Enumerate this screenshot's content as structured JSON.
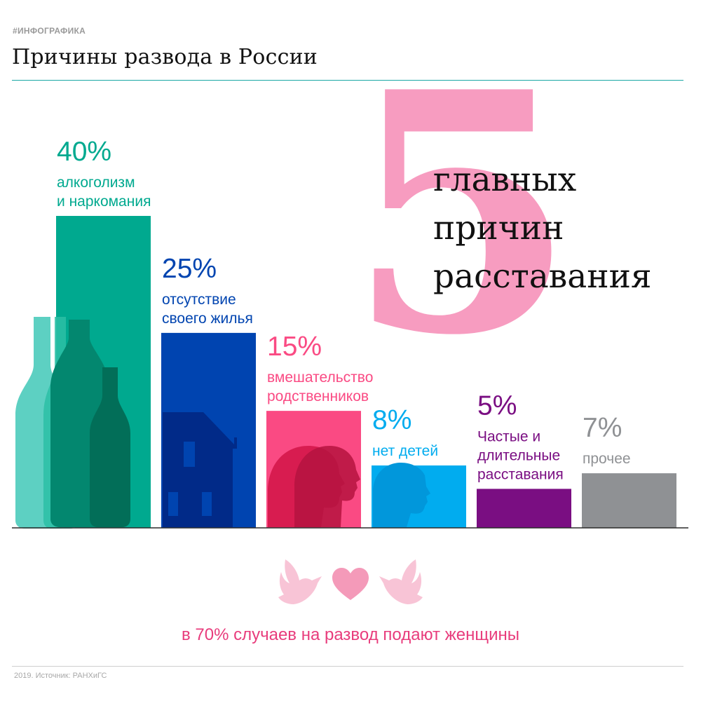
{
  "header": {
    "tag": "#ИНФОГРАФИКА",
    "title": "Причины развода в России"
  },
  "headline": {
    "number": "5",
    "lines": [
      "главных",
      "причин",
      "расставания"
    ]
  },
  "chart_data": {
    "type": "bar",
    "title": "Причины развода в России",
    "categories": [
      "алкоголизм и наркомания",
      "отсутствие своего жилья",
      "вмешательство родственников",
      "нет детей",
      "Частые и длительные расставания",
      "прочее"
    ],
    "values": [
      40,
      25,
      15,
      8,
      5,
      7
    ],
    "unit": "%",
    "ylim": [
      0,
      40
    ],
    "grid": false,
    "colors": [
      "#00a98f",
      "#0044b0",
      "#fa4a83",
      "#01acef",
      "#7a0e82",
      "#8f9194"
    ],
    "value_labels": [
      "40%",
      "25%",
      "15%",
      "8%",
      "5%",
      "7%"
    ],
    "label_lines": [
      [
        "алкоголизм",
        "и наркомания"
      ],
      [
        "отсутствие",
        "своего жилья"
      ],
      [
        "вмешательство",
        "родственников"
      ],
      [
        "нет детей"
      ],
      [
        "Частые и",
        "длительные",
        "расставания"
      ],
      [
        "прочее"
      ]
    ]
  },
  "footer": {
    "note": "в 70% случаев на развод подают женщины",
    "source": "2019. Источник: РАНХиГС"
  },
  "icons": [
    "bottles-icon",
    "house-icon",
    "heads-icon",
    "child-head-icon",
    "doves-heart-icon"
  ],
  "palette": {
    "accent_line": "#1aa7a4",
    "five": "#f79cc0",
    "note": "#e83c7c"
  }
}
